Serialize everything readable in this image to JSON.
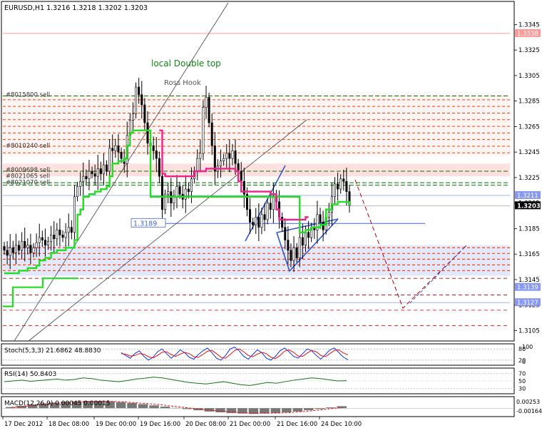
{
  "header": {
    "symbol_line": "EURUSD,H1  1.3216 1.3218 1.3202 1.3203"
  },
  "colors": {
    "up": "#000000",
    "down": "#000000",
    "fast_ma": "#22dd22",
    "slow_ma": "#ee2288",
    "level_red": "#ff4400",
    "level_green": "#007700",
    "level_blue": "#4466dd",
    "zone_pink": "#ffe0e0",
    "zone_blue": "#e4e8ff",
    "projection": "#b00000",
    "wedge": "#3355cc"
  },
  "chart_data": [
    {
      "type": "candlestick",
      "title": "EURUSD,H1",
      "ohlc_text": "1.3216 1.3218 1.3202 1.3203",
      "x_ticks": [
        "17 Dec 2012",
        "18 Dec 08:00",
        "19 Dec 00:00",
        "19 Dec 16:00",
        "20 Dec 08:00",
        "21 Dec 00:00",
        "21 Dec 16:00",
        "24 Dec 10:00"
      ],
      "y_ticks": [
        "1.3345",
        "1.3325",
        "1.3305",
        "1.3285",
        "1.3265",
        "1.3245",
        "1.3225",
        "1.3205",
        "1.3185",
        "1.3165",
        "1.3145",
        "1.3125",
        "1.3105"
      ],
      "ylim": [
        1.3098,
        1.3362
      ],
      "current_price": "1.3203",
      "price_labels": [
        "1.3338",
        "1.3211",
        "1.3139",
        "1.3127"
      ],
      "order_levels": [
        "#8015800 sell",
        "#8010240 sell",
        "#8009698 sell",
        "#8021065 sell",
        "#8021070 sell"
      ],
      "level_marker": "1.3189",
      "annotations": [
        "local Double top",
        "Ross Hook"
      ],
      "closes": [
        1.3168,
        1.3164,
        1.317,
        1.3166,
        1.3172,
        1.3168,
        1.3175,
        1.317,
        1.3172,
        1.3166,
        1.317,
        1.3174,
        1.3178,
        1.3176,
        1.3172,
        1.3175,
        1.318,
        1.3177,
        1.3184,
        1.318,
        1.3178,
        1.3182,
        1.3186,
        1.3182,
        1.321,
        1.3218,
        1.3222,
        1.3226,
        1.3224,
        1.323,
        1.3228,
        1.3226,
        1.3232,
        1.3228,
        1.3235,
        1.323,
        1.3248,
        1.3246,
        1.325,
        1.3245,
        1.324,
        1.3236,
        1.3258,
        1.327,
        1.3275,
        1.3296,
        1.329,
        1.3282,
        1.3268,
        1.3252,
        1.325,
        1.3246,
        1.324,
        1.3226,
        1.32,
        1.3212,
        1.3214,
        1.3205,
        1.321,
        1.3218,
        1.3212,
        1.3208,
        1.3216,
        1.3214,
        1.3224,
        1.323,
        1.324,
        1.3244,
        1.328,
        1.3288,
        1.3268,
        1.325,
        1.323,
        1.3234,
        1.3238,
        1.324,
        1.3244,
        1.324,
        1.3246,
        1.3236,
        1.323,
        1.3222,
        1.3212,
        1.32,
        1.319,
        1.3188,
        1.3194,
        1.3186,
        1.3196,
        1.3192,
        1.3205,
        1.32,
        1.321,
        1.3206,
        1.3194,
        1.3186,
        1.3176,
        1.3168,
        1.316,
        1.317,
        1.3162,
        1.3178,
        1.3172,
        1.3182,
        1.3178,
        1.3186,
        1.3184,
        1.3196,
        1.319,
        1.3184,
        1.3194,
        1.3198,
        1.321,
        1.322,
        1.3216,
        1.3224,
        1.3222,
        1.3214,
        1.3203
      ],
      "fast_ma": [
        1.315,
        1.315,
        1.315,
        1.315,
        1.315,
        1.3152,
        1.3152,
        1.3152,
        1.3154,
        1.3154,
        1.3154,
        1.3156,
        1.316,
        1.316,
        1.3162,
        1.3162,
        1.3166,
        1.3166,
        1.3168,
        1.3168,
        1.3168,
        1.317,
        1.317,
        1.317,
        1.3176,
        1.3196,
        1.32,
        1.321,
        1.321,
        1.3212,
        1.3212,
        1.3214,
        1.3214,
        1.3216,
        1.3216,
        1.3218,
        1.3226,
        1.3236,
        1.3236,
        1.3238,
        1.3238,
        1.324,
        1.325,
        1.326,
        1.3262,
        1.3262,
        1.3262,
        1.3262,
        1.3262,
        1.3262,
        1.321,
        1.321,
        1.321,
        1.321,
        1.321,
        1.321,
        1.321,
        1.321,
        1.321,
        1.321,
        1.321,
        1.321,
        1.321,
        1.321,
        1.321,
        1.321,
        1.321,
        1.321,
        1.321,
        1.321,
        1.321,
        1.321,
        1.321,
        1.321,
        1.321,
        1.321,
        1.321,
        1.321,
        1.321,
        1.321,
        1.321,
        1.321,
        1.321,
        1.321,
        1.321,
        1.321,
        1.321,
        1.321,
        1.321,
        1.321,
        1.321,
        1.321,
        1.321,
        1.321,
        1.321,
        1.321,
        1.321,
        1.321,
        1.321,
        1.321,
        1.321,
        1.3182,
        1.3182,
        1.3184,
        1.3184,
        1.3186,
        1.3186,
        1.3186,
        1.3188,
        1.3188,
        1.32,
        1.32,
        1.3204,
        1.3204,
        1.3206,
        1.3206,
        1.3206,
        1.3206,
        1.3203
      ],
      "slow_ma": [
        null,
        null,
        null,
        null,
        null,
        null,
        null,
        null,
        null,
        null,
        null,
        null,
        null,
        null,
        null,
        null,
        null,
        null,
        null,
        null,
        null,
        null,
        null,
        null,
        null,
        null,
        null,
        null,
        null,
        null,
        null,
        null,
        null,
        null,
        null,
        null,
        null,
        null,
        null,
        null,
        null,
        null,
        null,
        null,
        null,
        null,
        null,
        null,
        null,
        null,
        null,
        null,
        null,
        1.3262,
        1.3228,
        1.3226,
        1.3226,
        1.3226,
        1.3226,
        1.3226,
        1.3226,
        1.3226,
        1.3226,
        1.3226,
        1.3226,
        1.323,
        1.323,
        1.323,
        1.323,
        1.3232,
        1.3232,
        1.3232,
        1.3232,
        1.3232,
        1.3232,
        1.3232,
        1.3232,
        1.3232,
        1.3232,
        1.323,
        1.3222,
        1.3214,
        1.3214,
        1.3214,
        1.3214,
        1.3214,
        1.3214,
        1.3214,
        1.3214,
        1.3214,
        1.3214,
        1.3212,
        1.3212,
        1.32,
        1.3192,
        1.3192,
        1.3192,
        1.3192,
        1.3192,
        1.3192,
        1.3192,
        1.3192,
        1.3192,
        1.3194,
        1.3194,
        null,
        null,
        null,
        null,
        null,
        null,
        null,
        null,
        null,
        null,
        null,
        null,
        null,
        1.3203
      ]
    },
    {
      "type": "line",
      "title": "Stoch(5,3,3) 21.6862 48.8830",
      "y_ticks": [
        "80",
        "20"
      ],
      "y_labels_extra": [
        "100",
        "0"
      ],
      "series": [
        {
          "name": "main",
          "values": [
            60,
            45,
            30,
            55,
            70,
            40,
            20,
            35,
            65,
            80,
            55,
            30,
            50,
            75,
            60,
            35,
            25,
            50,
            70,
            85,
            60,
            30,
            20,
            45,
            80,
            90,
            70,
            40,
            25,
            50,
            75,
            60,
            30,
            20,
            40,
            70,
            85,
            65,
            40,
            30,
            55,
            80,
            70,
            45,
            25,
            50,
            75,
            85,
            60,
            35,
            21.7
          ]
        },
        {
          "name": "signal",
          "values": [
            55,
            52,
            42,
            45,
            55,
            52,
            38,
            32,
            45,
            62,
            65,
            50,
            40,
            52,
            62,
            55,
            38,
            35,
            50,
            68,
            72,
            55,
            35,
            30,
            50,
            72,
            80,
            65,
            45,
            38,
            52,
            62,
            55,
            35,
            28,
            45,
            68,
            75,
            62,
            42,
            40,
            58,
            72,
            65,
            45,
            38,
            55,
            72,
            75,
            58,
            48.9
          ]
        }
      ]
    },
    {
      "type": "line",
      "title": "RSI(14) 50.8403",
      "y_ticks": [
        "70",
        "50",
        "30"
      ],
      "series": [
        {
          "name": "RSI",
          "values": [
            48,
            50,
            52,
            49,
            51,
            53,
            55,
            52,
            54,
            58,
            56,
            52,
            50,
            48,
            51,
            55,
            57,
            60,
            58,
            54,
            50,
            46,
            44,
            42,
            45,
            48,
            44,
            40,
            38,
            42,
            46,
            44,
            48,
            52,
            55,
            58,
            56,
            53,
            50,
            50.8
          ]
        }
      ]
    },
    {
      "type": "bar",
      "title": "MACD(12,26,9) 0.00045 0.00015",
      "y_ticks": [
        "0.00253",
        "-0.00164"
      ],
      "values": [
        0.0003,
        0.0006,
        0.0009,
        0.0012,
        0.0014,
        0.0016,
        0.0017,
        0.0018,
        0.0018,
        0.0017,
        0.0015,
        0.0013,
        0.001,
        0.0007,
        0.0004,
        0.0001,
        -0.0002,
        -0.0005,
        -0.0008,
        -0.001,
        -0.0012,
        -0.0013,
        -0.0014,
        -0.0013,
        -0.0012,
        -0.001,
        -0.0008,
        -0.0005,
        -0.0002,
        0.0002,
        0.0005
      ],
      "signal_values": [
        0.0002,
        0.0004,
        0.0007,
        0.001,
        0.0012,
        0.0014,
        0.0015,
        0.0016,
        0.0017,
        0.0017,
        0.0016,
        0.0014,
        0.0012,
        0.001,
        0.0007,
        0.0004,
        0.0001,
        -0.0002,
        -0.0005,
        -0.0007,
        -0.0009,
        -0.0011,
        -0.0012,
        -0.0012,
        -0.0012,
        -0.0011,
        -0.0009,
        -0.0007,
        -0.0004,
        -0.0001,
        0.00015
      ]
    }
  ]
}
